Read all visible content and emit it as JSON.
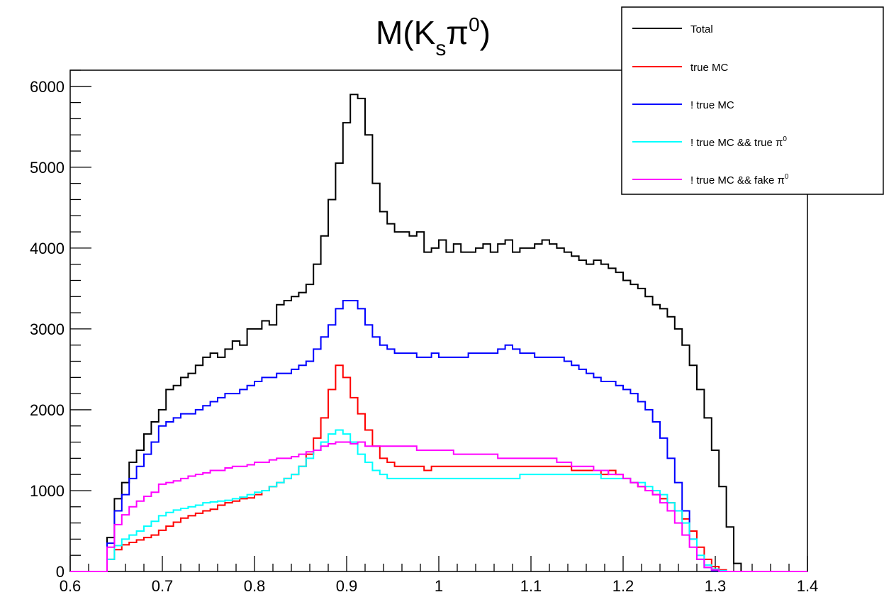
{
  "chart_data": {
    "type": "line",
    "title": "M(K",
    "title_sub": "s",
    "title_pi": "π",
    "title_sup": "0",
    "title_close": ")",
    "xlim": [
      0.6,
      1.4
    ],
    "ylim": [
      0,
      6200
    ],
    "x_ticks": [
      "0.6",
      "0.7",
      "0.8",
      "0.9",
      "1",
      "1.1",
      "1.2",
      "1.3",
      "1.4"
    ],
    "y_ticks": [
      "0",
      "1000",
      "2000",
      "3000",
      "4000",
      "5000",
      "6000"
    ],
    "bin_start": 0.6,
    "bin_width": 0.008,
    "grid": false,
    "legend_position": "top-right",
    "series": [
      {
        "name": "Total",
        "color": "#000000",
        "values": [
          0,
          0,
          0,
          0,
          0,
          420,
          900,
          1100,
          1350,
          1500,
          1700,
          1850,
          2000,
          2250,
          2300,
          2400,
          2450,
          2550,
          2650,
          2700,
          2650,
          2750,
          2850,
          2800,
          3000,
          3000,
          3100,
          3050,
          3300,
          3350,
          3400,
          3450,
          3550,
          3800,
          4150,
          4600,
          5050,
          5550,
          5900,
          5850,
          5400,
          4800,
          4450,
          4300,
          4200,
          4200,
          4150,
          4200,
          3950,
          4000,
          4100,
          3950,
          4050,
          3950,
          3950,
          4000,
          4050,
          3950,
          4050,
          4100,
          3950,
          4000,
          4000,
          4050,
          4100,
          4050,
          4000,
          3950,
          3900,
          3850,
          3800,
          3850,
          3800,
          3750,
          3700,
          3600,
          3550,
          3500,
          3400,
          3300,
          3250,
          3150,
          3000,
          2800,
          2550,
          2250,
          1900,
          1500,
          1050,
          550,
          100,
          0,
          0,
          0,
          0,
          0,
          0,
          0,
          0,
          0
        ]
      },
      {
        "name": "true MC",
        "color": "#ff0000",
        "values": [
          0,
          0,
          0,
          0,
          0,
          150,
          270,
          330,
          360,
          390,
          420,
          450,
          510,
          560,
          610,
          660,
          690,
          720,
          750,
          770,
          820,
          850,
          870,
          900,
          910,
          950,
          1000,
          1050,
          1100,
          1150,
          1200,
          1300,
          1450,
          1650,
          1900,
          2250,
          2550,
          2400,
          2150,
          1950,
          1750,
          1550,
          1400,
          1350,
          1300,
          1300,
          1300,
          1300,
          1250,
          1300,
          1300,
          1300,
          1300,
          1300,
          1300,
          1300,
          1300,
          1300,
          1300,
          1300,
          1300,
          1300,
          1300,
          1300,
          1300,
          1300,
          1300,
          1300,
          1250,
          1250,
          1250,
          1250,
          1200,
          1250,
          1200,
          1150,
          1100,
          1050,
          1000,
          950,
          900,
          850,
          750,
          650,
          500,
          300,
          150,
          60,
          20,
          0,
          0,
          0,
          0,
          0,
          0,
          0,
          0,
          0,
          0,
          0
        ]
      },
      {
        "name": "! true MC",
        "color": "#0000ff",
        "values": [
          0,
          0,
          0,
          0,
          0,
          350,
          750,
          950,
          1150,
          1300,
          1450,
          1600,
          1800,
          1850,
          1900,
          1950,
          1950,
          2000,
          2050,
          2100,
          2150,
          2200,
          2200,
          2250,
          2300,
          2350,
          2400,
          2400,
          2450,
          2450,
          2500,
          2550,
          2600,
          2750,
          2900,
          3050,
          3250,
          3350,
          3350,
          3250,
          3050,
          2900,
          2800,
          2750,
          2700,
          2700,
          2700,
          2650,
          2650,
          2700,
          2650,
          2650,
          2650,
          2650,
          2700,
          2700,
          2700,
          2700,
          2750,
          2800,
          2750,
          2700,
          2700,
          2650,
          2650,
          2650,
          2650,
          2600,
          2550,
          2500,
          2450,
          2400,
          2350,
          2350,
          2300,
          2250,
          2200,
          2100,
          2000,
          1850,
          1650,
          1400,
          1100,
          750,
          400,
          150,
          50,
          10,
          0,
          0,
          0,
          0,
          0,
          0,
          0,
          0,
          0,
          0,
          0,
          0
        ]
      },
      {
        "name": "! true MC && true π0",
        "color": "#00ffff",
        "values": [
          0,
          0,
          0,
          0,
          0,
          150,
          320,
          400,
          450,
          500,
          560,
          620,
          690,
          730,
          760,
          780,
          800,
          820,
          850,
          860,
          870,
          880,
          900,
          920,
          950,
          980,
          1000,
          1050,
          1100,
          1150,
          1200,
          1300,
          1400,
          1500,
          1600,
          1700,
          1750,
          1700,
          1600,
          1450,
          1350,
          1250,
          1200,
          1150,
          1150,
          1150,
          1150,
          1150,
          1150,
          1150,
          1150,
          1150,
          1150,
          1150,
          1150,
          1150,
          1150,
          1150,
          1150,
          1150,
          1150,
          1200,
          1200,
          1200,
          1200,
          1200,
          1200,
          1200,
          1200,
          1200,
          1200,
          1200,
          1150,
          1150,
          1150,
          1150,
          1100,
          1100,
          1050,
          1000,
          950,
          850,
          750,
          600,
          400,
          200,
          80,
          30,
          10,
          0,
          0,
          0,
          0,
          0,
          0,
          0,
          0,
          0,
          0,
          0
        ]
      },
      {
        "name": "! true MC && fake π0",
        "color": "#ff00ff",
        "values": [
          0,
          0,
          0,
          0,
          0,
          300,
          580,
          700,
          800,
          870,
          930,
          980,
          1080,
          1100,
          1120,
          1150,
          1180,
          1200,
          1220,
          1250,
          1250,
          1280,
          1300,
          1300,
          1320,
          1350,
          1350,
          1380,
          1400,
          1400,
          1420,
          1450,
          1480,
          1500,
          1550,
          1580,
          1600,
          1600,
          1580,
          1600,
          1550,
          1550,
          1550,
          1550,
          1550,
          1550,
          1550,
          1500,
          1500,
          1500,
          1500,
          1500,
          1450,
          1450,
          1450,
          1450,
          1450,
          1450,
          1400,
          1400,
          1400,
          1400,
          1400,
          1400,
          1400,
          1400,
          1350,
          1350,
          1300,
          1300,
          1300,
          1250,
          1250,
          1200,
          1200,
          1150,
          1100,
          1050,
          1000,
          950,
          850,
          750,
          600,
          450,
          300,
          150,
          50,
          20,
          0,
          0,
          0,
          0,
          0,
          0,
          0,
          0,
          0,
          0,
          0,
          0
        ]
      }
    ],
    "legend_labels": [
      {
        "prefix": "Total",
        "sup": ""
      },
      {
        "prefix": "true MC",
        "sup": ""
      },
      {
        "prefix": "! true MC",
        "sup": ""
      },
      {
        "prefix": "! true MC && true π",
        "sup": "0"
      },
      {
        "prefix": "! true MC && fake π",
        "sup": "0"
      }
    ]
  }
}
